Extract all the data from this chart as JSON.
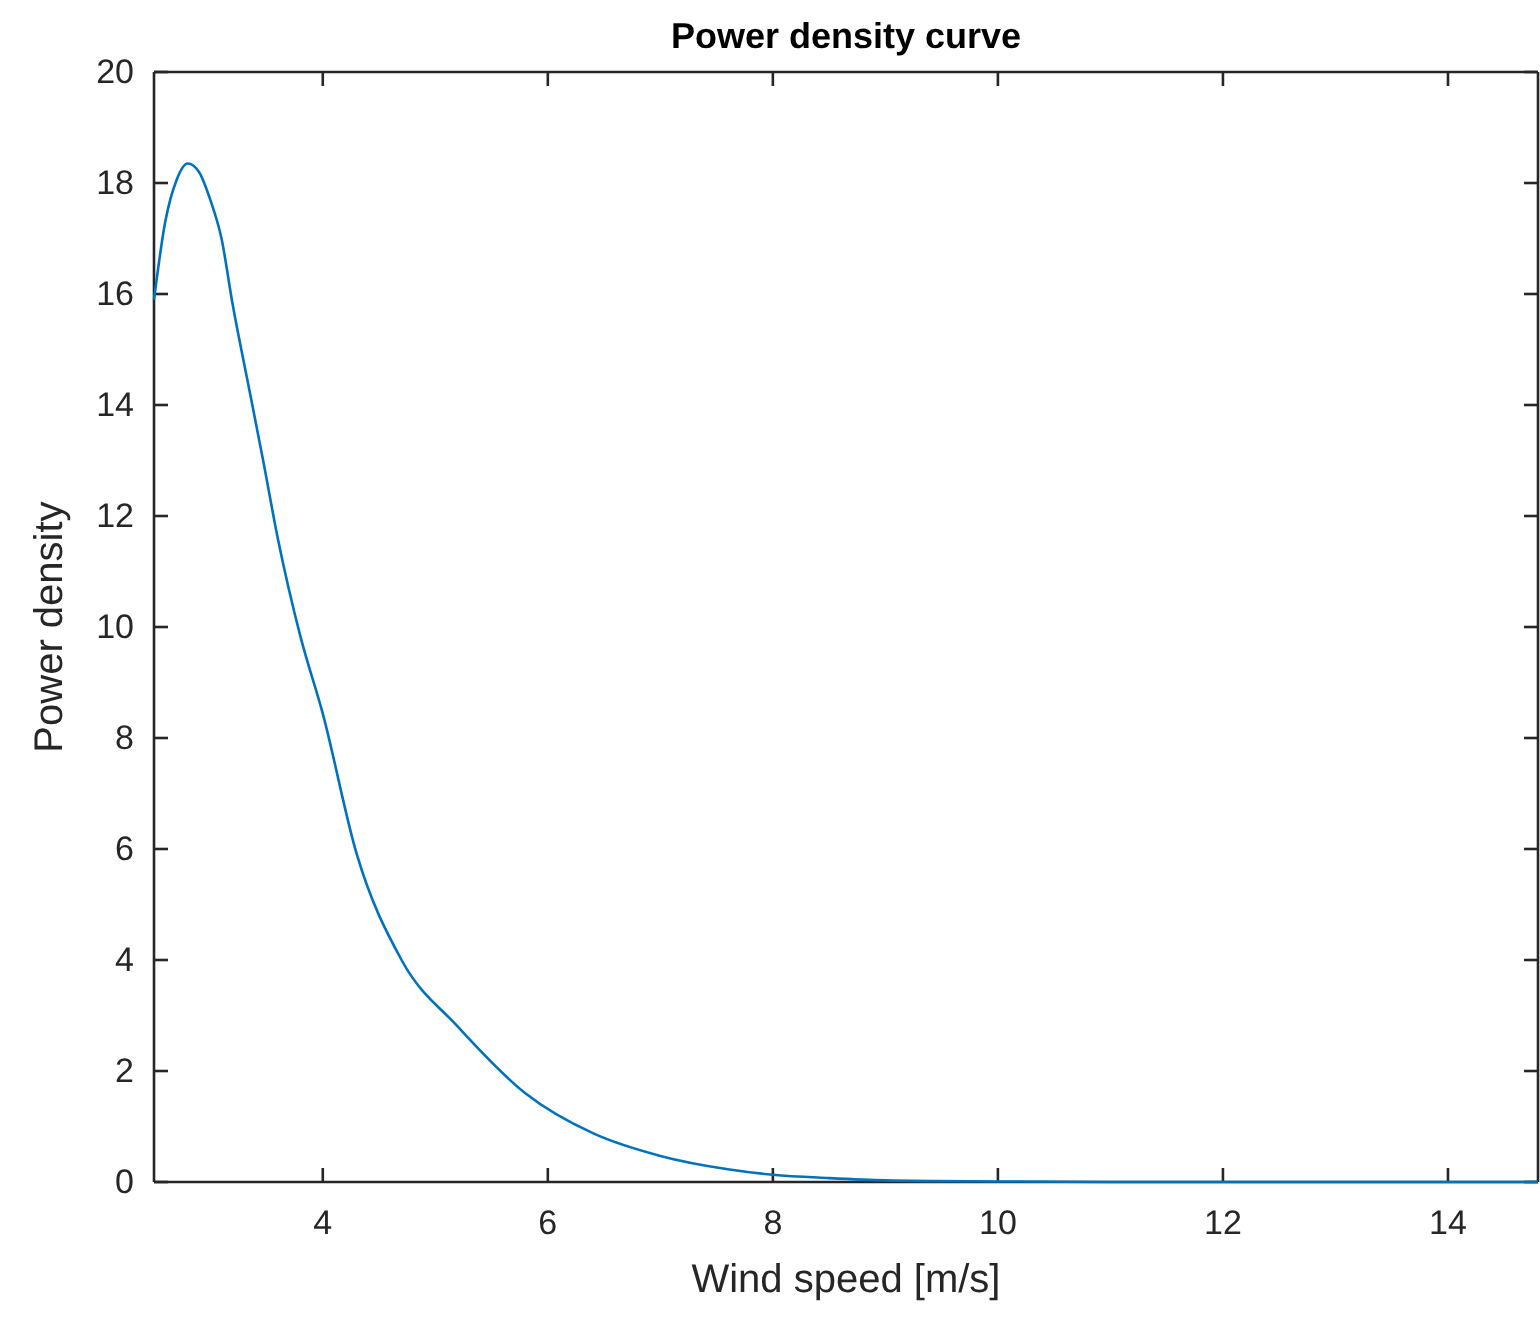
{
  "chart_data": {
    "type": "line",
    "title": "Power density curve",
    "xlabel": "Wind speed [m/s]",
    "ylabel": "Power density",
    "xlim": [
      2.5,
      14.8
    ],
    "ylim": [
      0,
      20
    ],
    "xticks": [
      4,
      6,
      8,
      10,
      12,
      14
    ],
    "yticks": [
      0,
      2,
      4,
      6,
      8,
      10,
      12,
      14,
      16,
      18,
      20
    ],
    "grid": false,
    "marker": "none",
    "line_style": "solid",
    "series": [
      {
        "color": "#0072bd",
        "x": [
          2.5,
          2.6,
          2.7,
          2.8,
          2.9,
          3.0,
          3.1,
          3.2,
          3.33,
          3.47,
          3.6,
          3.8,
          4.0,
          4.3,
          4.7,
          5.2,
          5.8,
          6.4,
          7.0,
          7.6,
          8.0,
          8.5,
          9.0,
          10.0,
          11.0,
          12.0,
          13.0,
          14.0,
          14.8
        ],
        "values": [
          15.9,
          17.3,
          18.05,
          18.35,
          18.2,
          17.7,
          17.0,
          15.8,
          14.45,
          13.0,
          11.6,
          9.84,
          8.44,
          5.92,
          4.0,
          2.8,
          1.6,
          0.88,
          0.47,
          0.23,
          0.13,
          0.07,
          0.03,
          0.01,
          0,
          0,
          0,
          0,
          0
        ]
      }
    ]
  }
}
